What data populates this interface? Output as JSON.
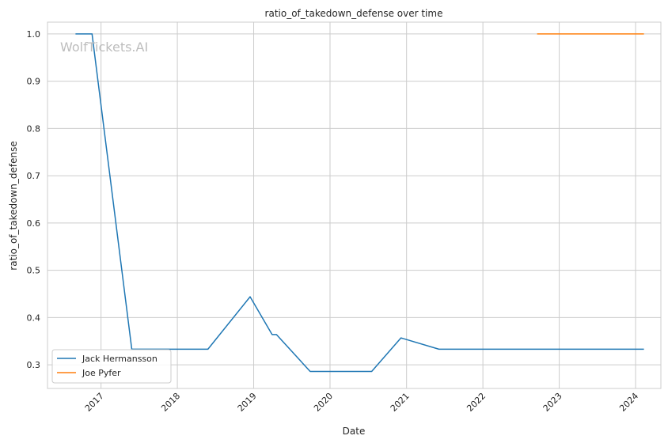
{
  "chart_data": {
    "type": "line",
    "title": "ratio_of_takedown_defense over time",
    "xlabel": "Date",
    "ylabel": "ratio_of_takedown_defense",
    "watermark": "WolfTickets.AI",
    "x_ticks": [
      "2017",
      "2018",
      "2019",
      "2020",
      "2021",
      "2022",
      "2023",
      "2024"
    ],
    "y_ticks": [
      "0.3",
      "0.4",
      "0.5",
      "0.6",
      "0.7",
      "0.8",
      "0.9",
      "1.0"
    ],
    "xlim": [
      "2016-04-20",
      "2024-05-01"
    ],
    "ylim": [
      0.25,
      1.025
    ],
    "grid": true,
    "legend_position": "lower-left",
    "series": [
      {
        "name": "Jack Hermansson",
        "color": "#1f77b4",
        "points": [
          {
            "x": "2016-09-01",
            "y": 1.0
          },
          {
            "x": "2016-11-19",
            "y": 1.0
          },
          {
            "x": "2017-05-28",
            "y": 0.333
          },
          {
            "x": "2018-05-27",
            "y": 0.333
          },
          {
            "x": "2018-12-15",
            "y": 0.444
          },
          {
            "x": "2019-03-30",
            "y": 0.364
          },
          {
            "x": "2019-04-20",
            "y": 0.364
          },
          {
            "x": "2019-09-28",
            "y": 0.286
          },
          {
            "x": "2020-07-18",
            "y": 0.286
          },
          {
            "x": "2020-12-05",
            "y": 0.357
          },
          {
            "x": "2021-06-05",
            "y": 0.333
          },
          {
            "x": "2024-02-10",
            "y": 0.333
          }
        ]
      },
      {
        "name": "Joe Pyfer",
        "color": "#ff7f0e",
        "points": [
          {
            "x": "2022-09-17",
            "y": 1.0
          },
          {
            "x": "2024-02-10",
            "y": 1.0
          }
        ]
      }
    ]
  }
}
